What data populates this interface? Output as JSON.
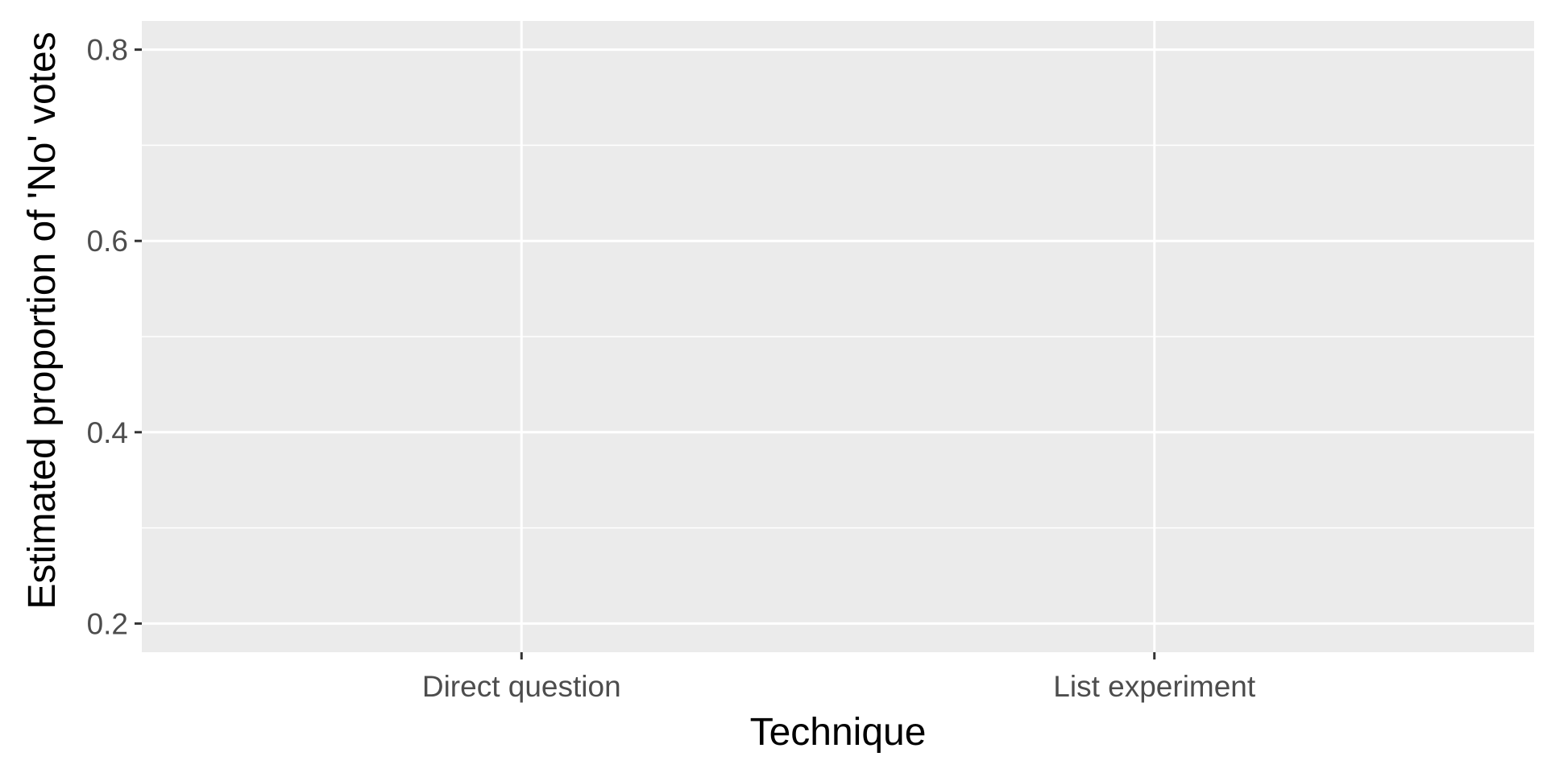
{
  "chart_data": {
    "type": "scatter",
    "categories": [
      "Direct question",
      "List experiment"
    ],
    "series": [],
    "xlabel": "Technique",
    "ylabel": "Estimated proportion of 'No' votes",
    "ylim": [
      0.17,
      0.83
    ],
    "y_ticks": [
      0.2,
      0.4,
      0.6,
      0.8
    ],
    "y_tick_labels": [
      "0.2",
      "0.4",
      "0.6",
      "0.8"
    ],
    "grid": true,
    "colors": {
      "panel": "#ebebeb",
      "grid": "#ffffff",
      "tick": "#333333",
      "tick_label": "#4d4d4d",
      "title": "#000000"
    }
  }
}
